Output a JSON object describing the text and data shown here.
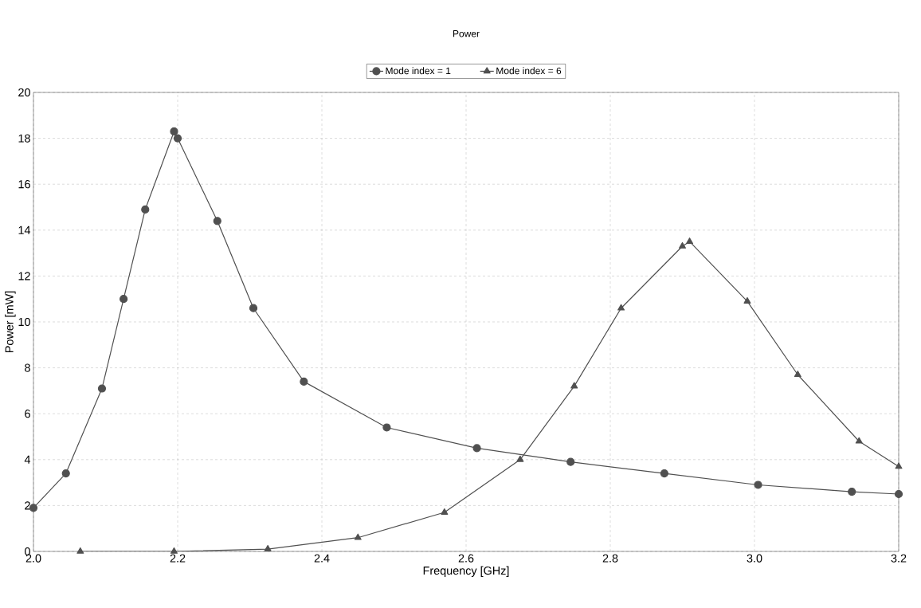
{
  "chart_data": {
    "type": "line",
    "title": "Power",
    "xlabel": "Frequency [GHz]",
    "ylabel": "Power [mW]",
    "xlim": [
      2.0,
      3.2
    ],
    "ylim": [
      0,
      20
    ],
    "xticks": [
      {
        "value": 2.0,
        "label": "2.0"
      },
      {
        "value": 2.2,
        "label": "2.2"
      },
      {
        "value": 2.4,
        "label": "2.4"
      },
      {
        "value": 2.6,
        "label": "2.6"
      },
      {
        "value": 2.8,
        "label": "2.8"
      },
      {
        "value": 3.0,
        "label": "3.0"
      },
      {
        "value": 3.2,
        "label": "3.2"
      }
    ],
    "yticks": [
      0,
      2,
      4,
      6,
      8,
      10,
      12,
      14,
      16,
      18,
      20
    ],
    "grid": true,
    "legend": "top",
    "line_style": "solid",
    "series": [
      {
        "name": "Mode index = 1",
        "color": "#505050",
        "marker": "circle",
        "x": [
          2.0,
          2.045,
          2.095,
          2.125,
          2.155,
          2.195,
          2.2,
          2.255,
          2.305,
          2.375,
          2.49,
          2.615,
          2.745,
          2.875,
          3.005,
          3.135,
          3.2
        ],
        "values": [
          1.9,
          3.4,
          7.1,
          11.0,
          14.9,
          18.3,
          18.0,
          14.4,
          10.6,
          7.4,
          5.4,
          4.5,
          3.9,
          3.4,
          2.9,
          2.6,
          2.5
        ]
      },
      {
        "name": "Mode index = 6",
        "color": "#505050",
        "marker": "triangle",
        "x": [
          2.065,
          2.195,
          2.325,
          2.45,
          2.57,
          2.675,
          2.75,
          2.815,
          2.9,
          2.91,
          2.99,
          3.06,
          3.145,
          3.2
        ],
        "values": [
          0,
          0,
          0.1,
          0.6,
          1.7,
          4.0,
          7.2,
          10.6,
          13.3,
          13.5,
          10.9,
          7.7,
          4.8,
          3.7
        ]
      }
    ]
  }
}
